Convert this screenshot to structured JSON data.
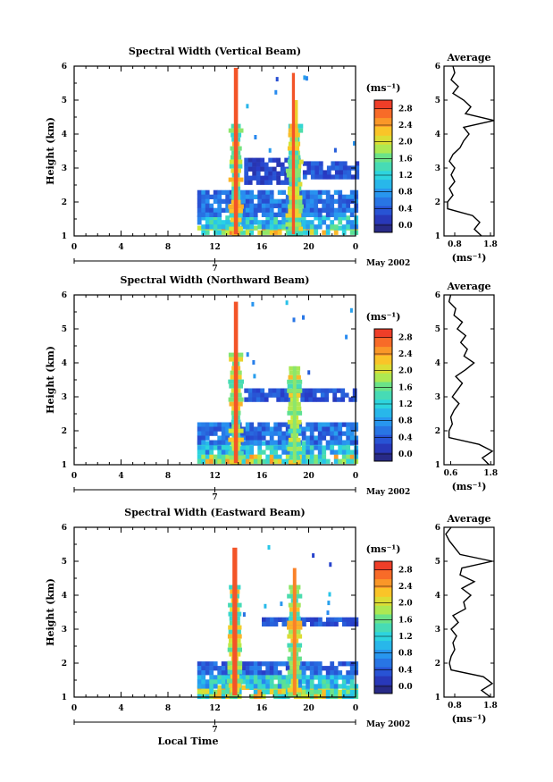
{
  "chart_data": [
    {
      "type": "heatmap",
      "title": "Spectral Width (Vertical Beam)",
      "ylabel": "Height (km)",
      "xlabel": "",
      "x_ticks": [
        "0",
        "4",
        "8",
        "12",
        "16",
        "20",
        "0"
      ],
      "y_ticks": [
        "1",
        "2",
        "3",
        "4",
        "5",
        "6"
      ],
      "xlim": [
        0,
        24
      ],
      "ylim": [
        1,
        6
      ],
      "date_day": "7",
      "date_label": "May 2002",
      "colorbar": {
        "unit_label": "(ms⁻¹)",
        "ticks": [
          "0.0",
          "0.4",
          "0.8",
          "1.2",
          "1.6",
          "2.0",
          "2.4",
          "2.8"
        ],
        "range": [
          0,
          3.0
        ]
      },
      "bands": [
        {
          "t0": 10.5,
          "t1": 24,
          "h0": 1.05,
          "h1": 1.3,
          "value": 1.9
        },
        {
          "t0": 10.5,
          "t1": 24,
          "h0": 1.3,
          "h1": 1.6,
          "value": 1.2
        },
        {
          "t0": 10.5,
          "t1": 24,
          "h0": 1.6,
          "h1": 2.35,
          "value": 0.7
        },
        {
          "t0": 14.5,
          "t1": 19.0,
          "h0": 2.6,
          "h1": 3.3,
          "value": 0.4
        },
        {
          "t0": 19.5,
          "t1": 24,
          "h0": 2.7,
          "h1": 3.2,
          "value": 0.5
        }
      ],
      "spikes": [
        {
          "t": 13.8,
          "width": 0.35,
          "top": 5.95,
          "value": 2.8
        },
        {
          "t": 18.9,
          "width": 0.35,
          "top": 5.0,
          "value": 2.2
        },
        {
          "t": 18.7,
          "width": 0.25,
          "top": 5.8,
          "value": 2.8
        }
      ],
      "average": {
        "title": "Average",
        "xlabel": "(ms⁻¹)",
        "x_ticks": [
          "0.8",
          "1.8"
        ],
        "xlim": [
          0.5,
          1.9
        ],
        "ylim": [
          1,
          6
        ],
        "h": [
          1.0,
          1.2,
          1.4,
          1.6,
          1.8,
          2.0,
          2.2,
          2.4,
          2.6,
          2.8,
          3.0,
          3.2,
          3.4,
          3.6,
          3.8,
          4.0,
          4.2,
          4.4,
          4.6,
          4.8,
          5.0,
          5.2,
          5.4,
          5.6,
          5.8,
          6.0
        ],
        "v": [
          1.55,
          1.35,
          1.5,
          1.3,
          0.6,
          0.6,
          0.75,
          0.65,
          0.8,
          0.7,
          0.8,
          0.65,
          0.75,
          0.95,
          1.05,
          1.2,
          1.05,
          1.9,
          1.1,
          1.25,
          1.05,
          0.75,
          0.9,
          0.7,
          0.8,
          0.75
        ]
      }
    },
    {
      "type": "heatmap",
      "title": "Spectral Width (Northward Beam)",
      "ylabel": "Height (km)",
      "xlabel": "",
      "x_ticks": [
        "0",
        "4",
        "8",
        "12",
        "16",
        "20",
        "0"
      ],
      "y_ticks": [
        "1",
        "2",
        "3",
        "4",
        "5",
        "6"
      ],
      "xlim": [
        0,
        24
      ],
      "ylim": [
        1,
        6
      ],
      "date_day": "7",
      "date_label": "May 2002",
      "colorbar": {
        "unit_label": "(ms⁻¹)",
        "ticks": [
          "0.0",
          "0.4",
          "0.8",
          "1.2",
          "1.6",
          "2.0",
          "2.4",
          "2.8"
        ],
        "range": [
          0,
          3.0
        ]
      },
      "bands": [
        {
          "t0": 10.5,
          "t1": 24,
          "h0": 1.05,
          "h1": 1.3,
          "value": 1.8
        },
        {
          "t0": 10.5,
          "t1": 24,
          "h0": 1.3,
          "h1": 1.7,
          "value": 1.1
        },
        {
          "t0": 10.5,
          "t1": 24,
          "h0": 1.7,
          "h1": 2.25,
          "value": 0.7
        },
        {
          "t0": 14.5,
          "t1": 24,
          "h0": 2.95,
          "h1": 3.25,
          "value": 0.5
        }
      ],
      "spikes": [
        {
          "t": 13.8,
          "width": 0.35,
          "top": 5.8,
          "value": 2.8
        },
        {
          "t": 18.8,
          "width": 0.3,
          "top": 3.9,
          "value": 1.8
        }
      ],
      "average": {
        "title": "Average",
        "xlabel": "(ms⁻¹)",
        "x_ticks": [
          "0.6",
          "1.8"
        ],
        "xlim": [
          0.4,
          1.9
        ],
        "ylim": [
          1,
          6
        ],
        "h": [
          1.0,
          1.2,
          1.4,
          1.6,
          1.8,
          2.0,
          2.2,
          2.4,
          2.6,
          2.8,
          3.0,
          3.2,
          3.4,
          3.6,
          3.8,
          4.0,
          4.2,
          4.4,
          4.6,
          4.8,
          5.0,
          5.2,
          5.4,
          5.6,
          5.8,
          6.0
        ],
        "v": [
          1.75,
          1.55,
          1.85,
          1.45,
          0.55,
          0.55,
          0.65,
          0.6,
          0.7,
          0.85,
          0.65,
          0.8,
          0.95,
          0.75,
          1.05,
          1.3,
          1.0,
          1.1,
          0.9,
          1.05,
          0.8,
          0.95,
          0.7,
          0.75,
          0.55,
          0.6
        ]
      }
    },
    {
      "type": "heatmap",
      "title": "Spectral Width (Eastward Beam)",
      "ylabel": "Height (km)",
      "xlabel": "Local Time",
      "x_ticks": [
        "0",
        "4",
        "8",
        "12",
        "16",
        "20",
        "0"
      ],
      "y_ticks": [
        "1",
        "2",
        "3",
        "4",
        "5",
        "6"
      ],
      "xlim": [
        0,
        24
      ],
      "ylim": [
        1,
        6
      ],
      "date_day": "7",
      "date_label": "May 2002",
      "colorbar": {
        "unit_label": "(ms⁻¹)",
        "ticks": [
          "0.0",
          "0.4",
          "0.8",
          "1.2",
          "1.6",
          "2.0",
          "2.4",
          "2.8"
        ],
        "range": [
          0,
          3.0
        ]
      },
      "bands": [
        {
          "t0": 10.5,
          "t1": 24,
          "h0": 1.05,
          "h1": 1.35,
          "value": 1.8
        },
        {
          "t0": 10.5,
          "t1": 24,
          "h0": 1.35,
          "h1": 1.65,
          "value": 1.2
        },
        {
          "t0": 10.5,
          "t1": 24,
          "h0": 1.65,
          "h1": 2.05,
          "value": 0.6
        },
        {
          "t0": 16.0,
          "t1": 24,
          "h0": 3.15,
          "h1": 3.35,
          "value": 0.5
        }
      ],
      "spikes": [
        {
          "t": 13.7,
          "width": 0.4,
          "top": 5.4,
          "value": 2.8
        },
        {
          "t": 18.8,
          "width": 0.3,
          "top": 4.8,
          "value": 2.6
        }
      ],
      "average": {
        "title": "Average",
        "xlabel": "(ms⁻¹)",
        "x_ticks": [
          "0.8",
          "1.8"
        ],
        "xlim": [
          0.5,
          1.9
        ],
        "ylim": [
          1,
          6
        ],
        "h": [
          1.0,
          1.2,
          1.4,
          1.6,
          1.8,
          2.0,
          2.2,
          2.4,
          2.6,
          2.8,
          3.0,
          3.2,
          3.4,
          3.6,
          3.8,
          4.0,
          4.2,
          4.4,
          4.6,
          4.8,
          5.0,
          5.2,
          5.4,
          5.6,
          5.8,
          6.0
        ],
        "v": [
          1.8,
          1.55,
          1.85,
          1.6,
          0.7,
          0.65,
          0.7,
          0.8,
          0.75,
          0.85,
          0.7,
          0.9,
          0.75,
          1.1,
          1.05,
          1.25,
          1.0,
          1.35,
          0.95,
          1.0,
          1.85,
          0.95,
          0.8,
          0.65,
          0.55,
          0.7
        ]
      }
    }
  ]
}
